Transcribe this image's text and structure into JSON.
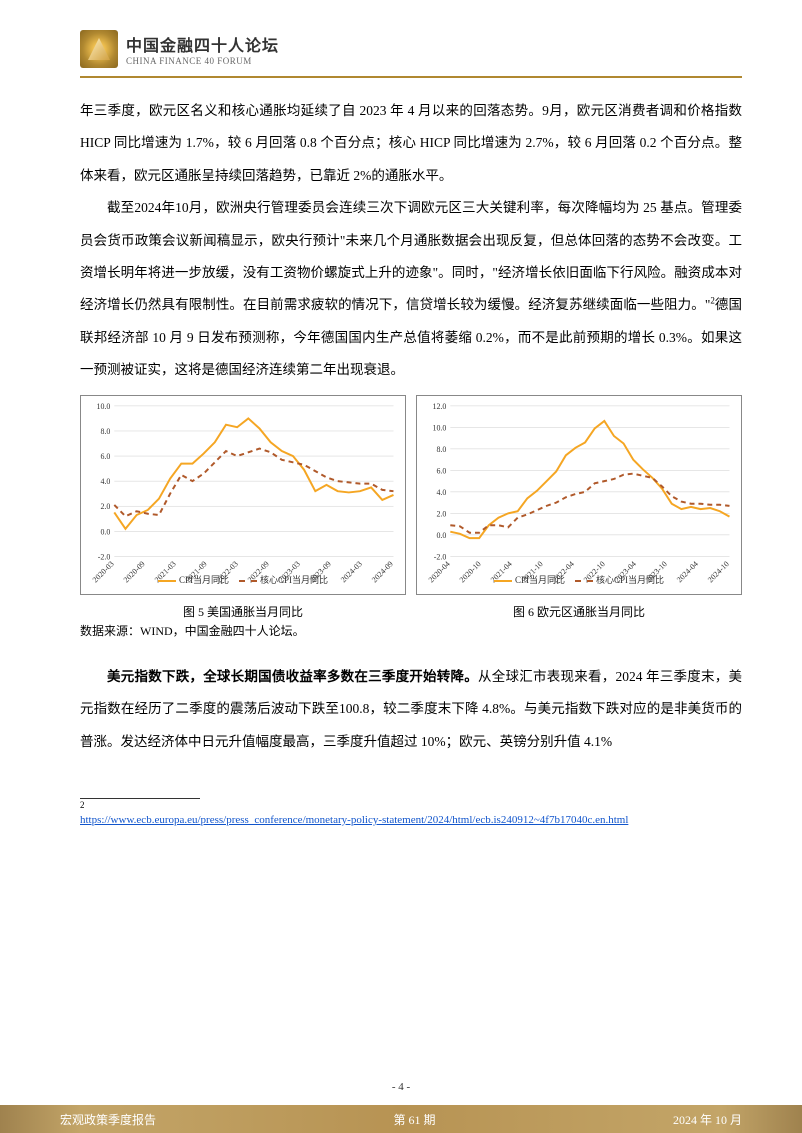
{
  "header": {
    "cn": "中国金融四十人论坛",
    "en": "CHINA FINANCE 40 FORUM"
  },
  "body": {
    "p1": "年三季度，欧元区名义和核心通胀均延续了自 2023 年 4 月以来的回落态势。9月，欧元区消费者调和价格指数 HICP 同比增速为 1.7%，较 6 月回落 0.8 个百分点；核心 HICP 同比增速为 2.7%，较 6 月回落 0.2 个百分点。整体来看，欧元区通胀呈持续回落趋势，已靠近 2%的通胀水平。",
    "p2a": "截至2024年10月，欧洲央行管理委员会连续三次下调欧元区三大关键利率，每次降幅均为 25 基点。管理委员会货币政策会议新闻稿显示，欧央行预计\"未来几个月通胀数据会出现反复，但总体回落的态势不会改变。工资增长明年将进一步放缓，没有工资物价螺旋式上升的迹象\"。同时，\"经济增长依旧面临下行风险。融资成本对经济增长仍然具有限制性。在目前需求疲软的情况下，信贷增长较为缓慢。经济复苏继续面临一些阻力。\"",
    "p2b": "德国联邦经济部 10 月 9 日发布预测称，今年德国国内生产总值将萎缩 0.2%，而不是此前预期的增长 0.3%。如果这一预测被证实，这将是德国经济连续第二年出现衰退。",
    "cap5": "图 5 美国通胀当月同比",
    "cap6": "图 6 欧元区通胀当月同比",
    "source": "数据来源：WIND，中国金融四十人论坛。",
    "p3lead": "美元指数下跌，全球长期国债收益率多数在三季度开始转降。",
    "p3rest": "从全球汇市表现来看，2024 年三季度末，美元指数在经历了二季度的震荡后波动下跌至100.8，较二季度末下降 4.8%。与美元指数下跌对应的是非美货币的普涨。发达经济体中日元升值幅度最高，三季度升值超过 10%；欧元、英镑分别升值 4.1%",
    "footnote_url": "https://www.ecb.europa.eu/press/press_conference/monetary-policy-statement/2024/html/ecb.is240912~4f7b17040c.en.html",
    "footnote_num": "2"
  },
  "chart5": {
    "type": "line",
    "ylim": [
      -2,
      10
    ],
    "ytick_step": 2,
    "xlabels": [
      "2020-03",
      "2020-09",
      "2021-03",
      "2021-09",
      "2022-03",
      "2022-09",
      "2023-03",
      "2023-09",
      "2024-03",
      "2024-09"
    ],
    "series": [
      {
        "name": "CPI当月同比",
        "color": "#f5a623",
        "dash": "none",
        "width": 2,
        "values": [
          1.5,
          0.2,
          1.3,
          1.7,
          2.6,
          4.2,
          5.4,
          5.4,
          6.2,
          7.1,
          8.5,
          8.3,
          9.0,
          8.2,
          7.1,
          6.4,
          6.0,
          4.9,
          3.2,
          3.7,
          3.2,
          3.1,
          3.2,
          3.5,
          2.5,
          2.9
        ]
      },
      {
        "name": "核心CPI当月同比",
        "color": "#b0592a",
        "dash": "5,4",
        "width": 2,
        "values": [
          2.1,
          1.2,
          1.6,
          1.4,
          1.3,
          3.0,
          4.5,
          4.0,
          4.6,
          5.5,
          6.4,
          6.0,
          6.3,
          6.6,
          6.3,
          5.7,
          5.5,
          5.3,
          4.8,
          4.3,
          4.0,
          3.9,
          3.8,
          3.8,
          3.3,
          3.2
        ]
      }
    ],
    "bg": "#ffffff",
    "grid": "#cccccc",
    "axis_font": 8,
    "legend_font": 9
  },
  "chart6": {
    "type": "line",
    "ylim": [
      -2,
      12
    ],
    "ytick_step": 2,
    "xlabels": [
      "2020-04",
      "2020-10",
      "2021-04",
      "2021-10",
      "2022-04",
      "2022-10",
      "2023-04",
      "2023-10",
      "2024-04",
      "2024-10"
    ],
    "series": [
      {
        "name": "CPI当月同比",
        "color": "#f5a623",
        "dash": "none",
        "width": 2,
        "values": [
          0.3,
          0.1,
          -0.3,
          -0.3,
          0.9,
          1.6,
          2.0,
          2.2,
          3.4,
          4.1,
          5.0,
          5.9,
          7.4,
          8.1,
          8.6,
          9.9,
          10.6,
          9.2,
          8.5,
          7.0,
          6.1,
          5.3,
          4.3,
          2.9,
          2.4,
          2.6,
          2.4,
          2.5,
          2.2,
          1.7
        ]
      },
      {
        "name": "核心CPI当月同比",
        "color": "#b0592a",
        "dash": "5,4",
        "width": 2,
        "values": [
          0.9,
          0.8,
          0.2,
          0.2,
          0.9,
          0.9,
          0.7,
          1.6,
          1.9,
          2.3,
          2.7,
          3.0,
          3.5,
          3.8,
          4.0,
          4.8,
          5.0,
          5.2,
          5.6,
          5.7,
          5.5,
          5.3,
          4.5,
          3.6,
          3.1,
          2.9,
          2.9,
          2.8,
          2.8,
          2.7
        ]
      }
    ],
    "bg": "#ffffff",
    "grid": "#cccccc",
    "axis_font": 8,
    "legend_font": 9
  },
  "footer": {
    "left": "宏观政策季度报告",
    "center": "第 61 期",
    "right": "2024 年 10 月"
  },
  "page": "- 4 -"
}
